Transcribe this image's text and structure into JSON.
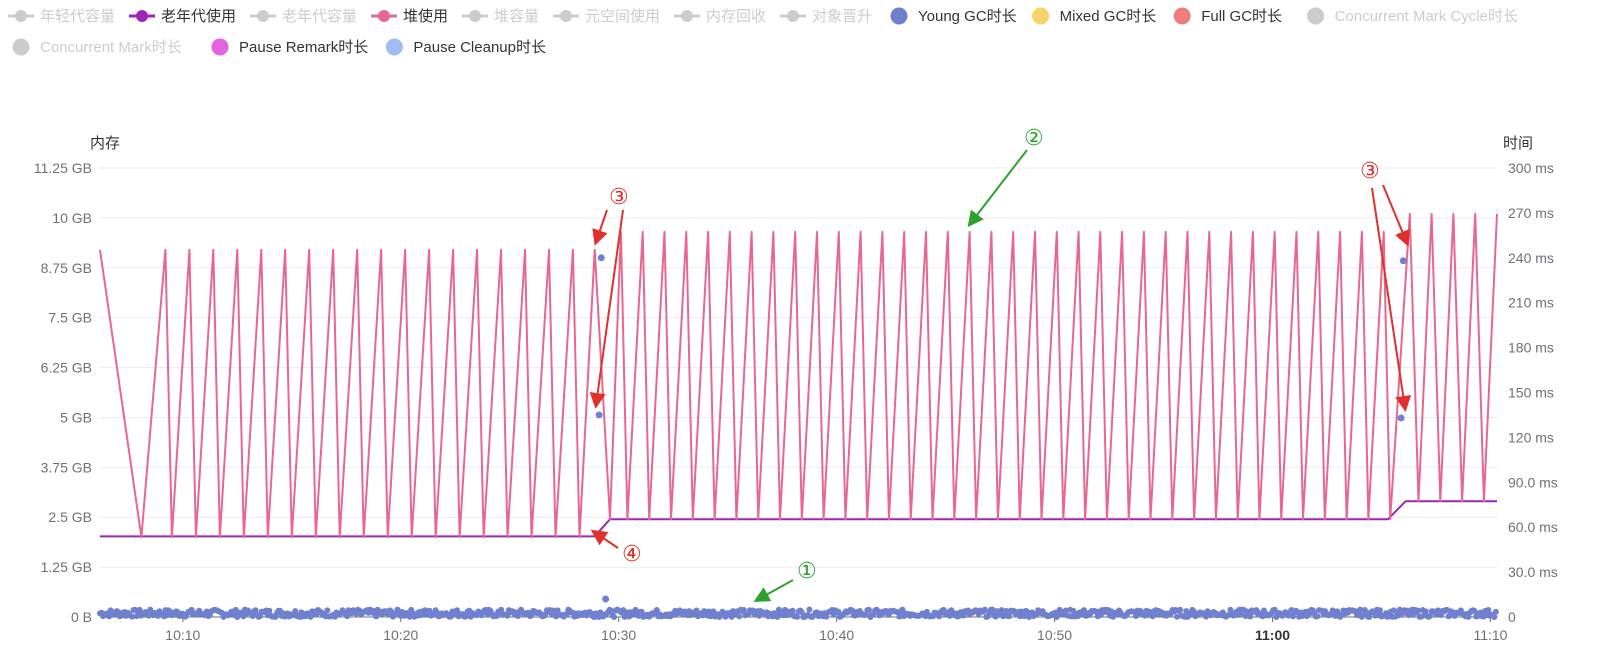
{
  "colors": {
    "legend_inactive": "#cccccc",
    "old_gen_used": "#9c27b0",
    "heap_used": "#e8678f",
    "young_gc": "#6f80cf",
    "mixed_gc": "#f7d36a",
    "full_gc": "#ee7e7e",
    "pause_remark": "#e364e3",
    "pause_cleanup": "#9ebef3",
    "annotation_red": "#e0302c",
    "annotation_green": "#2da02d",
    "axis_text": "#6e7079"
  },
  "legend": [
    {
      "label": "年轻代容量",
      "kind": "line",
      "active": false,
      "color": "#cccccc"
    },
    {
      "label": "老年代使用",
      "kind": "line",
      "active": true,
      "color": "#9c27b0"
    },
    {
      "label": "老年代容量",
      "kind": "line",
      "active": false,
      "color": "#cccccc"
    },
    {
      "label": "堆使用",
      "kind": "line",
      "active": true,
      "color": "#e8678f"
    },
    {
      "label": "堆容量",
      "kind": "line",
      "active": false,
      "color": "#cccccc"
    },
    {
      "label": "元空间使用",
      "kind": "line",
      "active": false,
      "color": "#cccccc"
    },
    {
      "label": "内存回收",
      "kind": "line",
      "active": false,
      "color": "#cccccc"
    },
    {
      "label": "对象晋升",
      "kind": "line",
      "active": false,
      "color": "#cccccc"
    },
    {
      "label": "Young GC时长",
      "kind": "dot",
      "active": true,
      "color": "#6f80cf"
    },
    {
      "label": "Mixed GC时长",
      "kind": "dot",
      "active": true,
      "color": "#f7d36a"
    },
    {
      "label": "Full GC时长",
      "kind": "dot",
      "active": true,
      "color": "#ee7e7e"
    },
    {
      "label": "Concurrent Mark Cycle时长",
      "kind": "dot",
      "active": false,
      "color": "#cccccc"
    },
    {
      "label": "Concurrent Mark时长",
      "kind": "dot",
      "active": false,
      "color": "#cccccc"
    },
    {
      "label": "Pause Remark时长",
      "kind": "dot",
      "active": true,
      "color": "#e364e3"
    },
    {
      "label": "Pause Cleanup时长",
      "kind": "dot",
      "active": true,
      "color": "#9ebef3"
    }
  ],
  "chart_data": {
    "type": "line",
    "y_left": {
      "title": "内存",
      "unit": "GB",
      "range": [
        0,
        11.25
      ],
      "ticks": [
        "0 B",
        "1.25 GB",
        "2.5 GB",
        "3.75 GB",
        "5 GB",
        "6.25 GB",
        "7.5 GB",
        "8.75 GB",
        "10 GB",
        "11.25 GB"
      ]
    },
    "y_right": {
      "title": "时间",
      "unit": "ms",
      "range": [
        0,
        300
      ],
      "ticks": [
        "0",
        "30.0 ms",
        "60.0 ms",
        "90.0 ms",
        "120 ms",
        "150 ms",
        "180 ms",
        "210 ms",
        "240 ms",
        "270 ms",
        "300 ms"
      ]
    },
    "x_axis": {
      "unit": "minutes",
      "range": [
        6.2,
        70.3
      ],
      "ticks": [
        {
          "label": "10:10",
          "minute": 10,
          "bold": false
        },
        {
          "label": "10:20",
          "minute": 20,
          "bold": false
        },
        {
          "label": "10:30",
          "minute": 30,
          "bold": false
        },
        {
          "label": "10:40",
          "minute": 40,
          "bold": false
        },
        {
          "label": "10:50",
          "minute": 50,
          "bold": false
        },
        {
          "label": "11:00",
          "minute": 60,
          "bold": true
        },
        {
          "label": "11:10",
          "minute": 70,
          "bold": false
        }
      ]
    },
    "series": [
      {
        "name": "老年代使用",
        "axis": "left",
        "color": "#9c27b0",
        "points": [
          [
            6.2,
            2.02
          ],
          [
            28.9,
            2.02
          ],
          [
            29.6,
            2.45
          ],
          [
            65.3,
            2.45
          ],
          [
            66.1,
            2.9
          ],
          [
            70.3,
            2.9
          ]
        ]
      },
      {
        "name": "堆使用",
        "axis": "left",
        "color": "#e8678f",
        "points": [
          [
            6.2,
            9.2
          ],
          [
            8.1,
            2.0
          ],
          [
            9.2,
            9.2
          ],
          [
            9.5,
            2.0
          ],
          [
            10.3,
            9.2
          ],
          [
            10.6,
            2.0
          ],
          [
            11.4,
            9.2
          ],
          [
            11.7,
            2.0
          ],
          [
            12.5,
            9.2
          ],
          [
            12.8,
            2.0
          ],
          [
            13.6,
            9.2
          ],
          [
            13.9,
            2.0
          ],
          [
            14.7,
            9.2
          ],
          [
            15.0,
            2.0
          ],
          [
            15.8,
            9.2
          ],
          [
            16.1,
            2.0
          ],
          [
            16.9,
            9.2
          ],
          [
            17.2,
            2.0
          ],
          [
            18.0,
            9.2
          ],
          [
            18.3,
            2.0
          ],
          [
            19.1,
            9.2
          ],
          [
            19.4,
            2.0
          ],
          [
            20.2,
            9.2
          ],
          [
            20.5,
            2.0
          ],
          [
            21.3,
            9.2
          ],
          [
            21.6,
            2.0
          ],
          [
            22.4,
            9.2
          ],
          [
            22.7,
            2.0
          ],
          [
            23.5,
            9.2
          ],
          [
            23.8,
            2.0
          ],
          [
            24.6,
            9.2
          ],
          [
            24.9,
            2.0
          ],
          [
            25.7,
            9.2
          ],
          [
            26.0,
            2.0
          ],
          [
            26.8,
            9.2
          ],
          [
            27.1,
            2.0
          ],
          [
            27.9,
            9.2
          ],
          [
            28.2,
            2.0
          ],
          [
            28.9,
            9.2
          ],
          [
            29.6,
            2.45
          ],
          [
            30.1,
            9.65
          ],
          [
            30.4,
            2.45
          ],
          [
            31.1,
            9.65
          ],
          [
            31.4,
            2.45
          ],
          [
            32.1,
            9.65
          ],
          [
            32.4,
            2.45
          ],
          [
            33.1,
            9.65
          ],
          [
            33.4,
            2.45
          ],
          [
            34.1,
            9.65
          ],
          [
            34.4,
            2.45
          ],
          [
            35.1,
            9.65
          ],
          [
            35.4,
            2.45
          ],
          [
            36.1,
            9.65
          ],
          [
            36.4,
            2.45
          ],
          [
            37.1,
            9.65
          ],
          [
            37.4,
            2.45
          ],
          [
            38.1,
            9.65
          ],
          [
            38.4,
            2.45
          ],
          [
            39.1,
            9.65
          ],
          [
            39.4,
            2.45
          ],
          [
            40.1,
            9.65
          ],
          [
            40.4,
            2.45
          ],
          [
            41.1,
            9.65
          ],
          [
            41.4,
            2.45
          ],
          [
            42.1,
            9.65
          ],
          [
            42.4,
            2.45
          ],
          [
            43.1,
            9.65
          ],
          [
            43.4,
            2.45
          ],
          [
            44.1,
            9.65
          ],
          [
            44.4,
            2.45
          ],
          [
            45.1,
            9.65
          ],
          [
            45.4,
            2.45
          ],
          [
            46.1,
            9.65
          ],
          [
            46.4,
            2.45
          ],
          [
            47.1,
            9.65
          ],
          [
            47.4,
            2.45
          ],
          [
            48.1,
            9.65
          ],
          [
            48.4,
            2.45
          ],
          [
            49.1,
            9.65
          ],
          [
            49.4,
            2.45
          ],
          [
            50.1,
            9.65
          ],
          [
            50.4,
            2.45
          ],
          [
            51.1,
            9.65
          ],
          [
            51.4,
            2.45
          ],
          [
            52.1,
            9.65
          ],
          [
            52.4,
            2.45
          ],
          [
            53.1,
            9.65
          ],
          [
            53.4,
            2.45
          ],
          [
            54.1,
            9.65
          ],
          [
            54.4,
            2.45
          ],
          [
            55.1,
            9.65
          ],
          [
            55.4,
            2.45
          ],
          [
            56.1,
            9.65
          ],
          [
            56.4,
            2.45
          ],
          [
            57.1,
            9.65
          ],
          [
            57.4,
            2.45
          ],
          [
            58.1,
            9.65
          ],
          [
            58.4,
            2.45
          ],
          [
            59.1,
            9.65
          ],
          [
            59.4,
            2.45
          ],
          [
            60.1,
            9.65
          ],
          [
            60.4,
            2.45
          ],
          [
            61.1,
            9.65
          ],
          [
            61.4,
            2.45
          ],
          [
            62.1,
            9.65
          ],
          [
            62.4,
            2.45
          ],
          [
            63.1,
            9.65
          ],
          [
            63.4,
            2.45
          ],
          [
            64.1,
            9.65
          ],
          [
            64.4,
            2.45
          ],
          [
            65.1,
            9.65
          ],
          [
            65.4,
            2.45
          ],
          [
            66.3,
            10.1
          ],
          [
            66.7,
            2.9
          ],
          [
            67.3,
            10.1
          ],
          [
            67.7,
            2.9
          ],
          [
            68.3,
            10.1
          ],
          [
            68.7,
            2.9
          ],
          [
            69.3,
            10.1
          ],
          [
            69.7,
            2.9
          ],
          [
            70.3,
            10.1
          ]
        ]
      },
      {
        "name": "Young GC时长",
        "axis": "right",
        "color": "#6f80cf",
        "kind": "scatter",
        "points": [
          [
            29.2,
            240
          ],
          [
            29.1,
            135
          ],
          [
            66.0,
            238
          ],
          [
            65.9,
            133
          ],
          [
            29.4,
            12
          ]
        ],
        "baseline": {
          "range": [
            6.2,
            70.3
          ],
          "value_ms": 2.5,
          "spread_ms": 2.5
        }
      }
    ],
    "annotations": [
      {
        "text": "①",
        "color": "red_or_green",
        "target": "young_gc_baseline"
      },
      {
        "text": "②",
        "color": "green",
        "target": "heap_peaks"
      },
      {
        "text": "③",
        "color": "red",
        "target": "young_gc_outliers_1029"
      },
      {
        "text": "③",
        "color": "red",
        "target": "young_gc_outliers_1106"
      },
      {
        "text": "④",
        "color": "red",
        "target": "old_gen_step"
      }
    ]
  }
}
